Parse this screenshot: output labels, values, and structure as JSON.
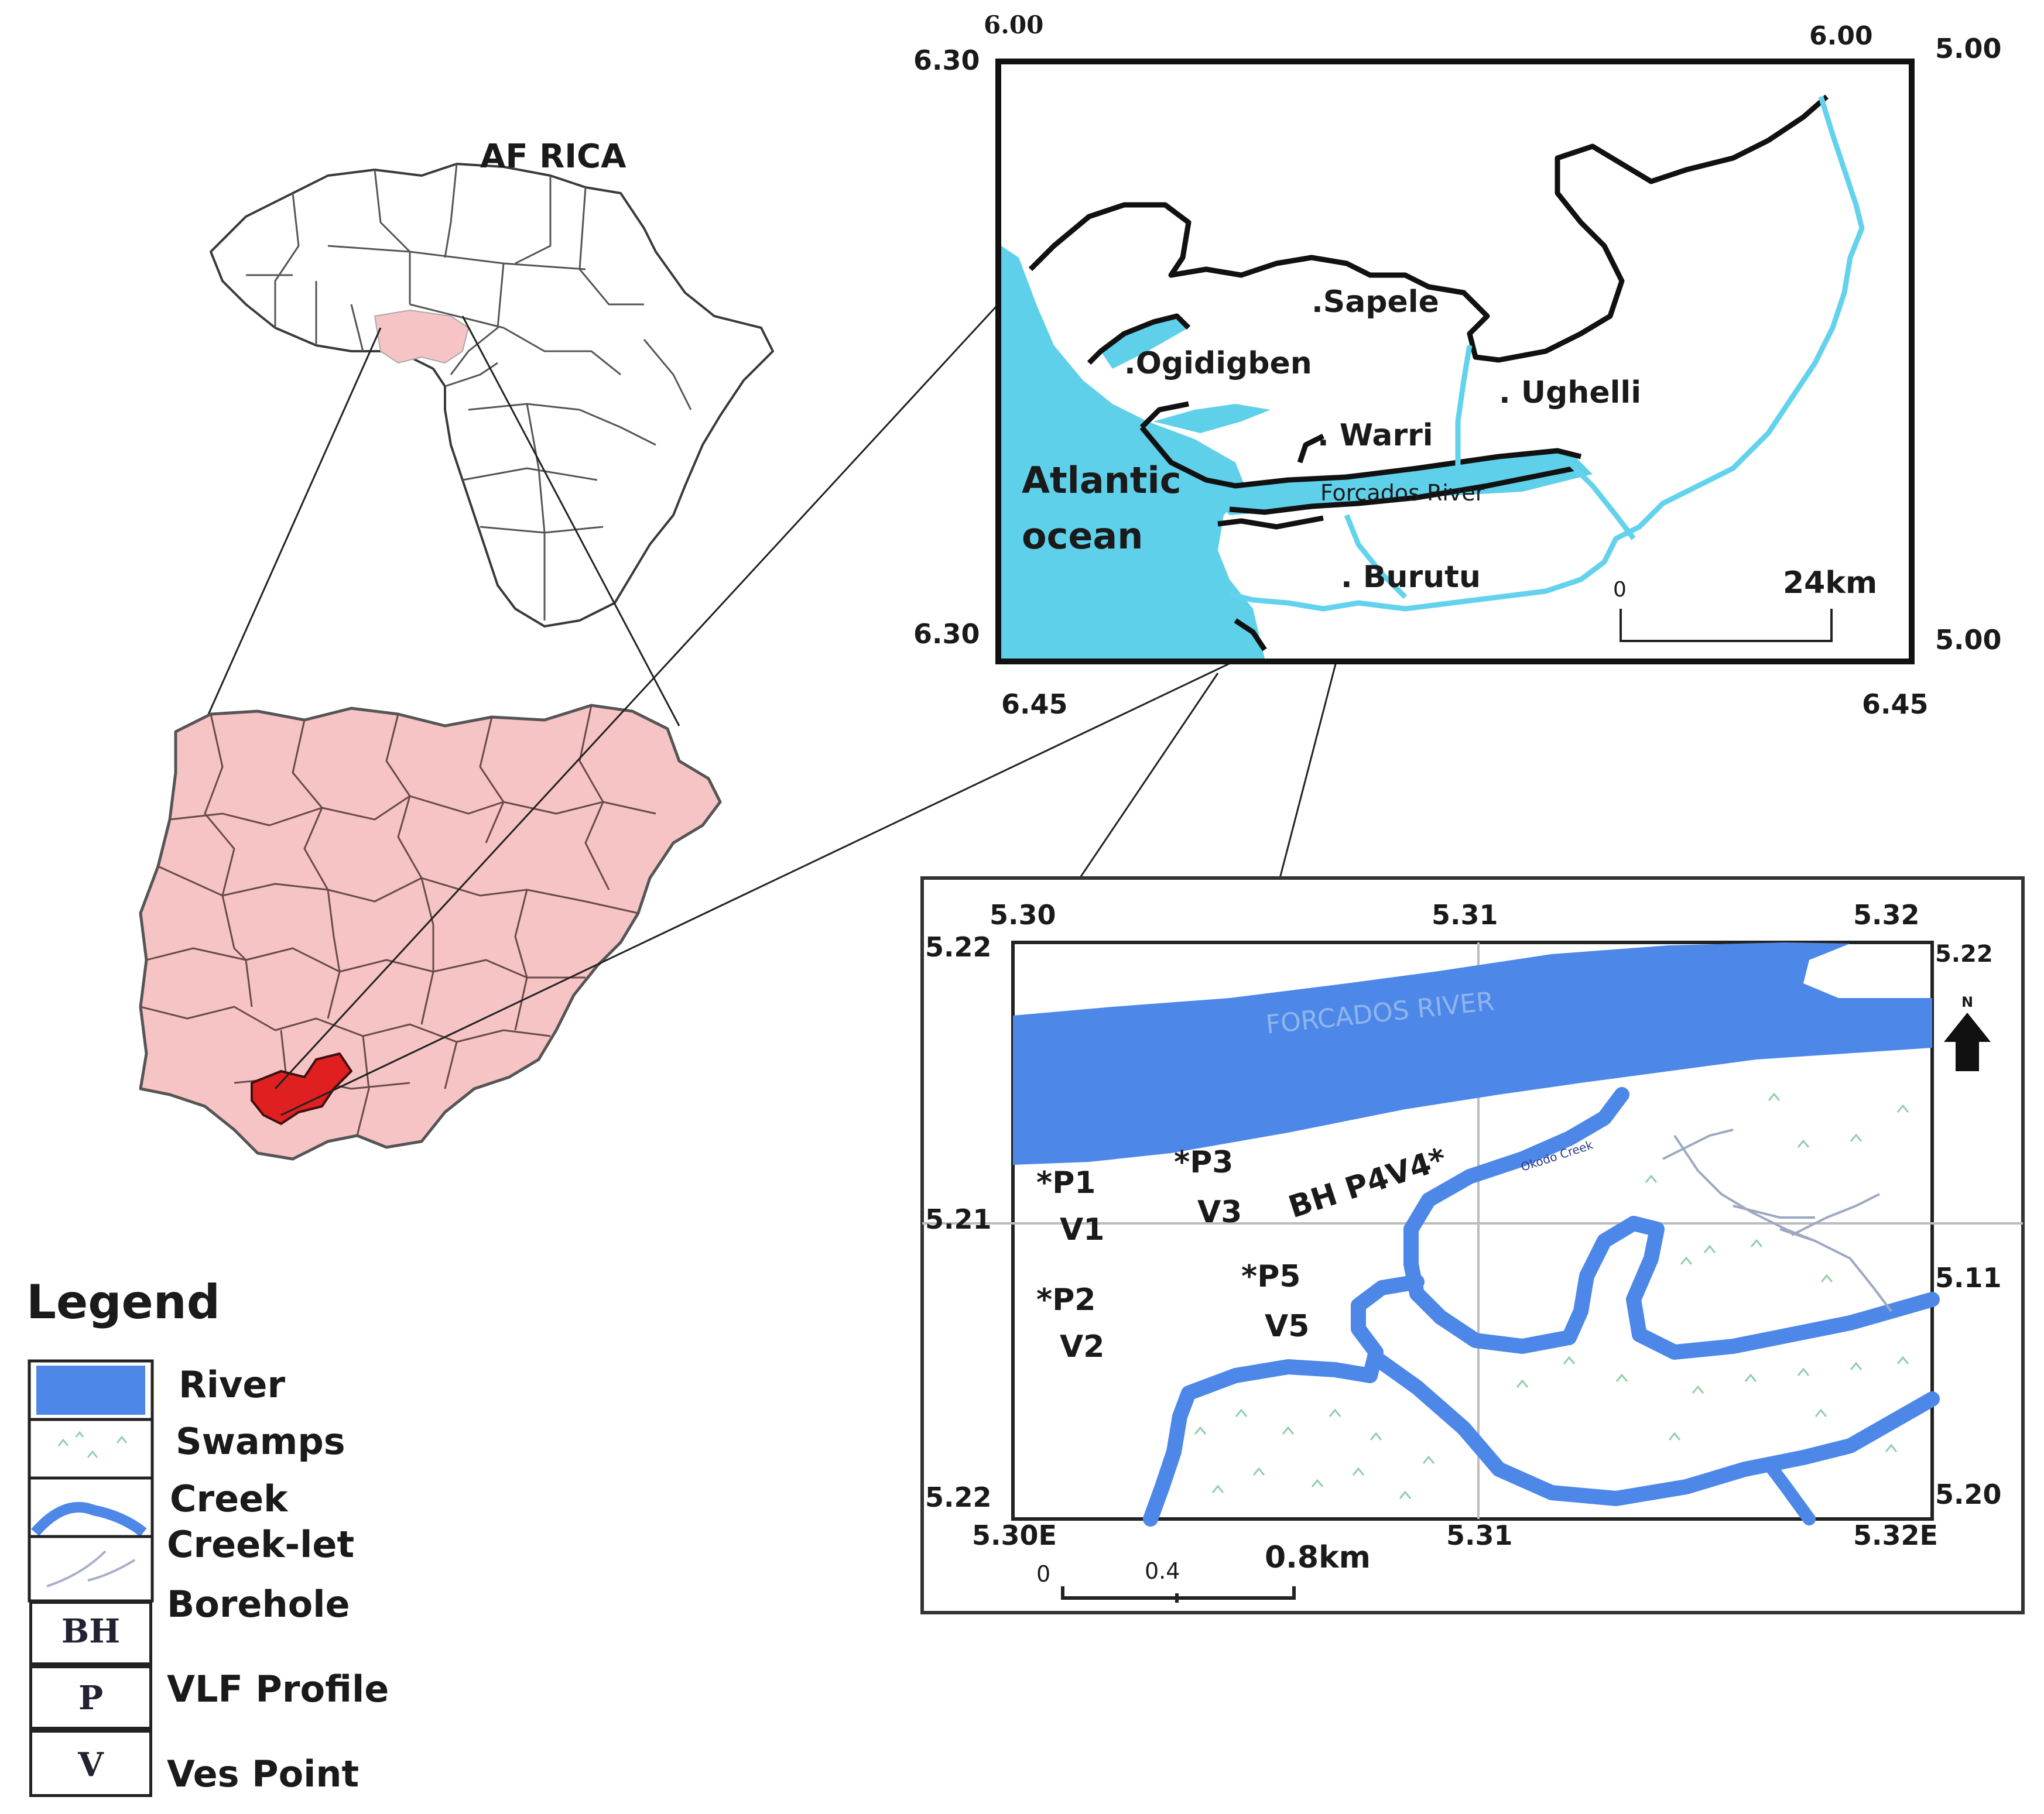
{
  "africa": {
    "label": "AF RICA"
  },
  "delta_map": {
    "corners": {
      "top_left_lat": "6.30",
      "top_left_lon": "6.00",
      "top_right_lon": "6.00",
      "top_right_lat": "5.00",
      "bottom_left_lat": "6.30",
      "bottom_right_lat": "5.00",
      "bottom_left_lon": "6.45",
      "bottom_right_lon": "6.45"
    },
    "places": {
      "sapele": ".Sapele",
      "ogidigben": ".Ogidigben",
      "ughelli": ". Ughelli",
      "warri": ". Warri",
      "forcados": "Forcados River",
      "burutu": ". Burutu",
      "ocean_line1": "Atlantic",
      "ocean_line2": "ocean"
    },
    "scale": {
      "start": "0",
      "end": "24km"
    }
  },
  "study_map": {
    "top_ticks": [
      "5.30",
      "5.31",
      "5.32"
    ],
    "bottom_ticks": [
      "5.30E",
      "5.31",
      "5.32E"
    ],
    "left_ticks": [
      "5.22",
      "5.21",
      "5.22"
    ],
    "right_ticks": [
      "5.22",
      "5.11",
      "5.20"
    ],
    "river_label": "FORCADOS RIVER",
    "creek_label": "Okodo Creek",
    "north": "N",
    "points": {
      "p1": "*P1",
      "v1": "V1",
      "p2": "*P2",
      "v2": "V2",
      "p3": "*P3",
      "v3": "V3",
      "p5": "*P5",
      "v5": "V5",
      "bh": "BH P4V4*"
    },
    "scale": {
      "start": "0",
      "mid": "0.4",
      "end": "0.8km"
    }
  },
  "legend": {
    "title": "Legend",
    "items": [
      {
        "label": "River"
      },
      {
        "label": "Swamps"
      },
      {
        "label": "Creek"
      },
      {
        "label": "Creek-let"
      },
      {
        "label": "Borehole",
        "symbol": "BH"
      },
      {
        "label": "VLF Profile",
        "symbol": "P"
      },
      {
        "label": "Ves Point",
        "symbol": "V"
      }
    ]
  },
  "colors": {
    "river_blue": "#4d88e8",
    "ocean_cyan": "#5fd0ea",
    "nigeria_pink": "#f6c4c4",
    "delta_red": "#e02020",
    "swamp_mark": "#8fd0a8"
  }
}
